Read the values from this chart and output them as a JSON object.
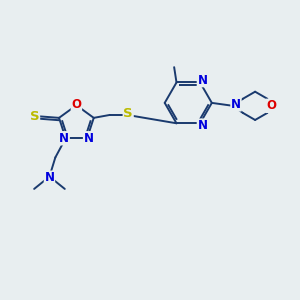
{
  "bg_color": "#e8eef0",
  "atom_colors": {
    "C": "#1a3a1a",
    "N": "#0000dd",
    "O": "#dd0000",
    "S": "#bbbb00"
  },
  "bond_color": "#1a3a6e",
  "bond_lw": 1.4,
  "font_size": 8.5,
  "figsize": [
    3.0,
    3.0
  ],
  "dpi": 100
}
